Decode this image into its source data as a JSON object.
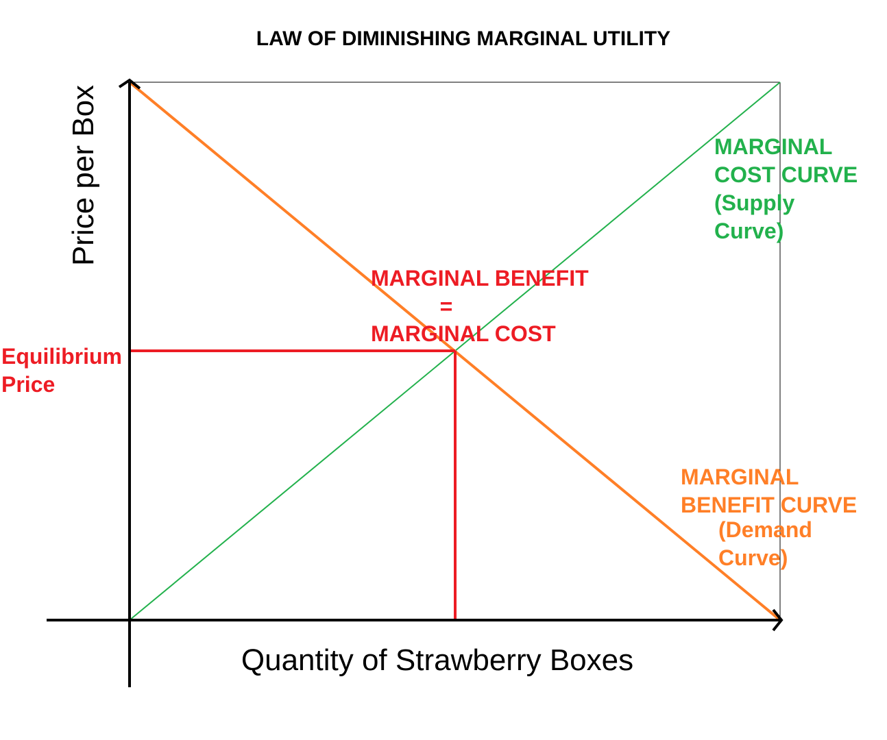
{
  "title": "LAW OF DIMINISHING MARGINAL UTILITY",
  "y_axis_label": "Price per Box",
  "x_axis_label": "Quantity of Strawberry Boxes",
  "equilibrium_label": {
    "line1": "Equilibrium",
    "line2": "Price"
  },
  "intersection_label": {
    "line1": "MARGINAL BENEFIT",
    "line2": "=",
    "line3": "MARGINAL COST"
  },
  "supply_label": {
    "line1": "MARGINAL",
    "line2": "COST CURVE",
    "line3": "(Supply",
    "line4": "Curve)"
  },
  "demand_label": {
    "line1": "MARGINAL",
    "line2": "BENEFIT CURVE",
    "line3": "(Demand",
    "line4": "Curve)"
  },
  "colors": {
    "axes": "#000000",
    "supply": "#22b14c",
    "demand": "#ff7f27",
    "equilibrium": "#ed1c24",
    "frame": "#000000"
  }
}
